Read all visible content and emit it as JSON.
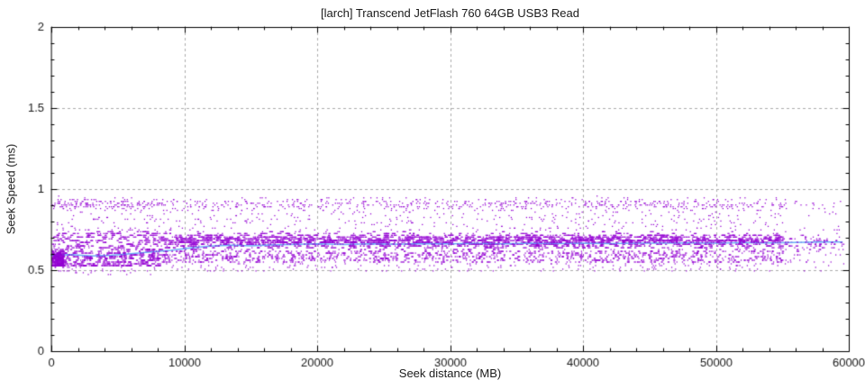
{
  "page": {
    "background": "#ffffff"
  },
  "chart_data": {
    "type": "scatter",
    "title": "[larch] Transcend JetFlash 760 64GB USB3 Read",
    "xlabel": "Seek distance (MB)",
    "ylabel": "Seek Speed (ms)",
    "xlim": [
      0,
      60000
    ],
    "ylim": [
      0,
      2
    ],
    "x_major_ticks": [
      0,
      10000,
      20000,
      30000,
      40000,
      50000,
      60000
    ],
    "x_minor_step": 2000,
    "y_major_ticks": [
      0,
      0.5,
      1,
      1.5,
      2
    ],
    "y_minor_step": 0.1,
    "grid": {
      "show": true,
      "color": "#ababab",
      "dash": [
        3,
        3
      ],
      "x_lines": [
        10000,
        20000,
        30000,
        40000,
        50000
      ],
      "y_lines": [
        0.5,
        1,
        1.5
      ]
    },
    "axis": {
      "border_color": "#000000",
      "tick_color": "#000000",
      "label_color": "#1a1a1a",
      "tick_len_major": 6,
      "tick_len_minor": 3
    },
    "series": [
      {
        "name": "seek-samples",
        "kind": "scatter",
        "color": "#9400d3",
        "marker_px": 1.25,
        "generator": {
          "seed": 1337,
          "samples": 6000,
          "quant": 0.011,
          "x_max": 59600,
          "regions": [
            {
              "x0": 0,
              "x1": 8000,
              "density": 1.0,
              "bands": [
                {
                  "y0": 0.525,
                  "y1": 0.735,
                  "w": 0.66,
                  "shape": "low",
                  "run": 4
                },
                {
                  "y0": 0.47,
                  "y1": 0.525,
                  "w": 0.05,
                  "shape": "uniform",
                  "run": 1
                },
                {
                  "y0": 0.735,
                  "y1": 0.855,
                  "w": 0.08,
                  "shape": "uniform",
                  "run": 1
                },
                {
                  "y0": 0.855,
                  "y1": 0.955,
                  "w": 0.21,
                  "shape": "mid",
                  "run": 1
                }
              ]
            },
            {
              "x0": 8000,
              "x1": 55000,
              "density": 0.92,
              "bands": [
                {
                  "y0": 0.625,
                  "y1": 0.738,
                  "w": 0.46,
                  "shape": "mid",
                  "run": 4
                },
                {
                  "y0": 0.545,
                  "y1": 0.625,
                  "w": 0.27,
                  "shape": "uniform",
                  "run": 2
                },
                {
                  "y0": 0.49,
                  "y1": 0.545,
                  "w": 0.05,
                  "shape": "uniform",
                  "run": 1
                },
                {
                  "y0": 0.738,
                  "y1": 0.855,
                  "w": 0.07,
                  "shape": "uniform",
                  "run": 1
                },
                {
                  "y0": 0.855,
                  "y1": 0.955,
                  "w": 0.15,
                  "shape": "mid",
                  "run": 1
                }
              ]
            },
            {
              "x0": 55000,
              "x1": 59600,
              "density": 0.33,
              "bands": [
                {
                  "y0": 0.6,
                  "y1": 0.73,
                  "w": 0.62,
                  "shape": "mid",
                  "run": 2
                },
                {
                  "y0": 0.545,
                  "y1": 0.6,
                  "w": 0.12,
                  "shape": "uniform",
                  "run": 1
                },
                {
                  "y0": 0.49,
                  "y1": 0.545,
                  "w": 0.04,
                  "shape": "uniform",
                  "run": 1
                },
                {
                  "y0": 0.73,
                  "y1": 0.855,
                  "w": 0.07,
                  "shape": "uniform",
                  "run": 1
                },
                {
                  "y0": 0.855,
                  "y1": 0.955,
                  "w": 0.15,
                  "shape": "mid",
                  "run": 1
                }
              ]
            }
          ],
          "left_edge_block": {
            "x0": 0,
            "x1": 900,
            "y0": 0.52,
            "y1": 0.615,
            "count": 260,
            "run": 2
          }
        }
      },
      {
        "name": "smoothed-average",
        "kind": "line",
        "color": "#5fa8f5",
        "width": 1.5,
        "points": [
          [
            0,
            0.592
          ],
          [
            1500,
            0.596
          ],
          [
            3000,
            0.588
          ],
          [
            4500,
            0.592
          ],
          [
            6000,
            0.602
          ],
          [
            7500,
            0.612
          ],
          [
            9000,
            0.622
          ],
          [
            10500,
            0.638
          ],
          [
            12000,
            0.648
          ],
          [
            13500,
            0.654
          ],
          [
            15000,
            0.65
          ],
          [
            16500,
            0.656
          ],
          [
            18000,
            0.659
          ],
          [
            20000,
            0.662
          ],
          [
            22000,
            0.658
          ],
          [
            24000,
            0.662
          ],
          [
            26000,
            0.66
          ],
          [
            28000,
            0.664
          ],
          [
            30000,
            0.662
          ],
          [
            32000,
            0.665
          ],
          [
            34000,
            0.662
          ],
          [
            36000,
            0.666
          ],
          [
            38000,
            0.664
          ],
          [
            40000,
            0.666
          ],
          [
            42000,
            0.664
          ],
          [
            44000,
            0.667
          ],
          [
            46000,
            0.666
          ],
          [
            48000,
            0.668
          ],
          [
            50000,
            0.667
          ],
          [
            52000,
            0.669
          ],
          [
            54000,
            0.668
          ],
          [
            56000,
            0.671
          ],
          [
            58000,
            0.673
          ],
          [
            59500,
            0.674
          ]
        ]
      }
    ]
  }
}
